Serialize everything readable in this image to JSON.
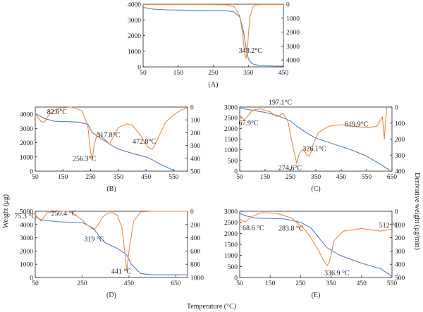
{
  "figure": {
    "left_axis_label": "Weight (μg)",
    "right_axis_label": "Derivative weight (μg/min)",
    "bottom_axis_label": "Temperature (°C)",
    "colors": {
      "weight": "#4f7fc8",
      "derivative": "#f0883a",
      "axis": "#222222"
    }
  },
  "chart_data": [
    {
      "panel": "(A)",
      "type": "line",
      "xlim": [
        50,
        450
      ],
      "xticks": [
        "50",
        "150",
        "250",
        "350",
        "450"
      ],
      "ylim": [
        0,
        4000
      ],
      "yticks": [
        "0",
        "1000",
        "2000",
        "3000",
        "4000"
      ],
      "y2lim": [
        0,
        4500
      ],
      "y2ticks": [
        "0",
        "1000",
        "2000",
        "3000",
        "4000"
      ],
      "y2_inverted": true,
      "series": [
        {
          "axis": "left",
          "color": "#4f7fc8",
          "points": [
            [
              50,
              3800
            ],
            [
              80,
              3680
            ],
            [
              120,
              3640
            ],
            [
              200,
              3610
            ],
            [
              250,
              3600
            ],
            [
              290,
              3580
            ],
            [
              310,
              3500
            ],
            [
              325,
              3200
            ],
            [
              335,
              2400
            ],
            [
              343,
              1300
            ],
            [
              350,
              500
            ],
            [
              360,
              200
            ],
            [
              380,
              100
            ],
            [
              420,
              60
            ],
            [
              450,
              50
            ]
          ]
        },
        {
          "axis": "right",
          "color": "#f0883a",
          "points": [
            [
              50,
              20
            ],
            [
              200,
              20
            ],
            [
              290,
              40
            ],
            [
              310,
              200
            ],
            [
              325,
              800
            ],
            [
              333,
              2000
            ],
            [
              338,
              3200
            ],
            [
              343,
              3900
            ],
            [
              347,
              3400
            ],
            [
              350,
              2200
            ],
            [
              355,
              900
            ],
            [
              362,
              250
            ],
            [
              370,
              40
            ],
            [
              400,
              20
            ],
            [
              450,
              20
            ]
          ]
        }
      ],
      "annotations": [
        {
          "text": "343.2°C",
          "x": 343,
          "axis": "right",
          "y": 3900
        }
      ]
    },
    {
      "panel": "(B)",
      "type": "line",
      "xlim": [
        50,
        600
      ],
      "xticks": [
        "50",
        "150",
        "250",
        "350",
        "450",
        "550"
      ],
      "ylim": [
        0,
        4500
      ],
      "yticks": [
        "0",
        "1000",
        "2000",
        "3000",
        "4000"
      ],
      "y2lim": [
        0,
        500
      ],
      "y2ticks": [
        "0",
        "100",
        "200",
        "300",
        "400",
        "500"
      ],
      "y2_inverted": true,
      "series": [
        {
          "axis": "left",
          "color": "#4f7fc8",
          "points": [
            [
              50,
              4050
            ],
            [
              82,
              3700
            ],
            [
              120,
              3500
            ],
            [
              200,
              3450
            ],
            [
              240,
              3300
            ],
            [
              256,
              2700
            ],
            [
              275,
              2450
            ],
            [
              300,
              2150
            ],
            [
              318,
              1900
            ],
            [
              350,
              1550
            ],
            [
              400,
              1250
            ],
            [
              450,
              1000
            ],
            [
              473,
              800
            ],
            [
              500,
              500
            ],
            [
              550,
              50
            ],
            [
              560,
              0
            ]
          ]
        },
        {
          "axis": "right",
          "color": "#f0883a",
          "points": [
            [
              50,
              50
            ],
            [
              70,
              110
            ],
            [
              82.6,
              120
            ],
            [
              100,
              60
            ],
            [
              130,
              10
            ],
            [
              180,
              0
            ],
            [
              220,
              30
            ],
            [
              240,
              150
            ],
            [
              250,
              350
            ],
            [
              256.3,
              410
            ],
            [
              262,
              300
            ],
            [
              275,
              200
            ],
            [
              290,
              230
            ],
            [
              310,
              270
            ],
            [
              317.8,
              290
            ],
            [
              330,
              240
            ],
            [
              350,
              160
            ],
            [
              380,
              130
            ],
            [
              400,
              140
            ],
            [
              430,
              220
            ],
            [
              455,
              310
            ],
            [
              472.8,
              330
            ],
            [
              490,
              260
            ],
            [
              520,
              120
            ],
            [
              550,
              60
            ],
            [
              580,
              20
            ],
            [
              600,
              10
            ]
          ]
        }
      ],
      "annotations": [
        {
          "text": "82.6°C",
          "x": 82.6,
          "axis": "right",
          "y": 120
        },
        {
          "text": "256.3°C",
          "x": 256.3,
          "axis": "right",
          "y": 410
        },
        {
          "text": "317.8°C",
          "x": 317.8,
          "axis": "right",
          "y": 290
        },
        {
          "text": "472.8°C",
          "x": 472.8,
          "axis": "right",
          "y": 330
        }
      ]
    },
    {
      "panel": "(C)",
      "type": "line",
      "xlim": [
        50,
        650
      ],
      "xticks": [
        "50",
        "150",
        "250",
        "350",
        "450",
        "550",
        "650"
      ],
      "ylim": [
        0,
        3000
      ],
      "yticks": [
        "0",
        "500",
        "1000",
        "1500",
        "2000",
        "2500",
        "3000"
      ],
      "y2lim": [
        0,
        400
      ],
      "y2ticks": [
        "0",
        "100",
        "200",
        "300",
        "400"
      ],
      "y2_inverted": true,
      "series": [
        {
          "axis": "left",
          "color": "#4f7fc8",
          "points": [
            [
              50,
              2950
            ],
            [
              100,
              2850
            ],
            [
              150,
              2750
            ],
            [
              200,
              2600
            ],
            [
              250,
              2350
            ],
            [
              275,
              2100
            ],
            [
              300,
              1900
            ],
            [
              326,
              1700
            ],
            [
              350,
              1550
            ],
            [
              400,
              1350
            ],
            [
              450,
              1150
            ],
            [
              500,
              950
            ],
            [
              550,
              700
            ],
            [
              600,
              350
            ],
            [
              640,
              50
            ]
          ]
        },
        {
          "axis": "right",
          "color": "#f0883a",
          "points": [
            [
              50,
              50
            ],
            [
              67.9,
              80
            ],
            [
              80,
              60
            ],
            [
              100,
              20
            ],
            [
              130,
              10
            ],
            [
              170,
              30
            ],
            [
              197.1,
              60
            ],
            [
              220,
              40
            ],
            [
              240,
              90
            ],
            [
              260,
              250
            ],
            [
              274.6,
              350
            ],
            [
              285,
              290
            ],
            [
              300,
              260
            ],
            [
              315,
              300
            ],
            [
              326.1,
              305
            ],
            [
              340,
              230
            ],
            [
              360,
              160
            ],
            [
              400,
              120
            ],
            [
              450,
              110
            ],
            [
              500,
              120
            ],
            [
              550,
              130
            ],
            [
              590,
              120
            ],
            [
              605,
              80
            ],
            [
              612,
              60
            ],
            [
              619.9,
              200
            ],
            [
              625,
              80
            ],
            [
              630,
              0
            ]
          ]
        }
      ],
      "annotations": [
        {
          "text": "67.9°C",
          "x": 67.9,
          "axis": "right",
          "y": 80
        },
        {
          "text": "197.1°C",
          "x": 197.1,
          "axis": "right",
          "y": 60
        },
        {
          "text": "274.6°C",
          "x": 274.6,
          "axis": "right",
          "y": 350
        },
        {
          "text": "326.1°C",
          "x": 326.1,
          "axis": "right",
          "y": 305
        },
        {
          "text": "619.9°C",
          "x": 619.9,
          "axis": "right",
          "y": 200
        }
      ]
    },
    {
      "panel": "(D)",
      "type": "line",
      "xlim": [
        50,
        700
      ],
      "xticks": [
        "50",
        "250",
        "450",
        "650"
      ],
      "ylim": [
        0,
        5000
      ],
      "yticks": [
        "0",
        "1000",
        "2000",
        "3000",
        "4000",
        "5000"
      ],
      "y2lim": [
        0,
        1000
      ],
      "y2ticks": [
        "0",
        "200",
        "400",
        "600",
        "800",
        "1000"
      ],
      "y2_inverted": true,
      "series": [
        {
          "axis": "left",
          "color": "#4f7fc8",
          "points": [
            [
              50,
              4600
            ],
            [
              75,
              4350
            ],
            [
              150,
              4200
            ],
            [
              250,
              4150
            ],
            [
              300,
              3700
            ],
            [
              319,
              3200
            ],
            [
              350,
              2600
            ],
            [
              400,
              2200
            ],
            [
              430,
              1850
            ],
            [
              441,
              1700
            ],
            [
              460,
              1000
            ],
            [
              500,
              300
            ],
            [
              550,
              200
            ],
            [
              650,
              200
            ],
            [
              700,
              200
            ]
          ]
        },
        {
          "axis": "right",
          "color": "#f0883a",
          "points": [
            [
              50,
              50
            ],
            [
              75.3,
              150
            ],
            [
              100,
              20
            ],
            [
              150,
              0
            ],
            [
              200,
              0
            ],
            [
              240,
              100
            ],
            [
              250.4,
              130
            ],
            [
              270,
              200
            ],
            [
              300,
              280
            ],
            [
              319,
              200
            ],
            [
              340,
              80
            ],
            [
              360,
              30
            ],
            [
              380,
              20
            ],
            [
              400,
              60
            ],
            [
              420,
              250
            ],
            [
              435,
              700
            ],
            [
              441,
              900
            ],
            [
              450,
              600
            ],
            [
              470,
              150
            ],
            [
              500,
              10
            ],
            [
              550,
              0
            ],
            [
              700,
              0
            ]
          ]
        }
      ],
      "annotations": [
        {
          "text": "75.3 °C",
          "x": 75.3,
          "axis": "right",
          "y": 150
        },
        {
          "text": "250.4 °C",
          "x": 250.4,
          "axis": "right",
          "y": 130
        },
        {
          "text": "319 °C",
          "x": 319,
          "axis": "right",
          "y": 280
        },
        {
          "text": "441 °C",
          "x": 441,
          "axis": "right",
          "y": 900
        }
      ]
    },
    {
      "panel": "(E)",
      "type": "line",
      "xlim": [
        50,
        550
      ],
      "xticks": [
        "50",
        "150",
        "250",
        "350",
        "450",
        "550"
      ],
      "ylim": [
        0,
        3000
      ],
      "yticks": [
        "0",
        "500",
        "1000",
        "1500",
        "2000",
        "2500",
        "3000"
      ],
      "y2lim": [
        0,
        500
      ],
      "y2ticks": [
        "0",
        "100",
        "200",
        "300",
        "400",
        "500"
      ],
      "y2_inverted": true,
      "series": [
        {
          "axis": "left",
          "color": "#4f7fc8",
          "points": [
            [
              50,
              2900
            ],
            [
              68.6,
              2800
            ],
            [
              100,
              2700
            ],
            [
              200,
              2650
            ],
            [
              250,
              2500
            ],
            [
              283.8,
              2250
            ],
            [
              310,
              1800
            ],
            [
              336.9,
              1350
            ],
            [
              380,
              1000
            ],
            [
              450,
              650
            ],
            [
              512,
              400
            ],
            [
              550,
              50
            ]
          ]
        },
        {
          "axis": "right",
          "color": "#f0883a",
          "points": [
            [
              50,
              60
            ],
            [
              68.6,
              80
            ],
            [
              90,
              40
            ],
            [
              120,
              10
            ],
            [
              170,
              15
            ],
            [
              220,
              50
            ],
            [
              260,
              130
            ],
            [
              283.8,
              200
            ],
            [
              310,
              300
            ],
            [
              325,
              370
            ],
            [
              336.9,
              410
            ],
            [
              345,
              380
            ],
            [
              360,
              220
            ],
            [
              390,
              150
            ],
            [
              450,
              130
            ],
            [
              512,
              150
            ],
            [
              550,
              135
            ]
          ]
        }
      ],
      "annotations": [
        {
          "text": "68.6 °C",
          "x": 68.6,
          "axis": "right",
          "y": 80
        },
        {
          "text": "283.8 °C",
          "x": 283.8,
          "axis": "right",
          "y": 200
        },
        {
          "text": "336.9 °C",
          "x": 336.9,
          "axis": "right",
          "y": 410
        },
        {
          "text": "512 °C",
          "x": 512,
          "axis": "right",
          "y": 150
        }
      ]
    }
  ]
}
